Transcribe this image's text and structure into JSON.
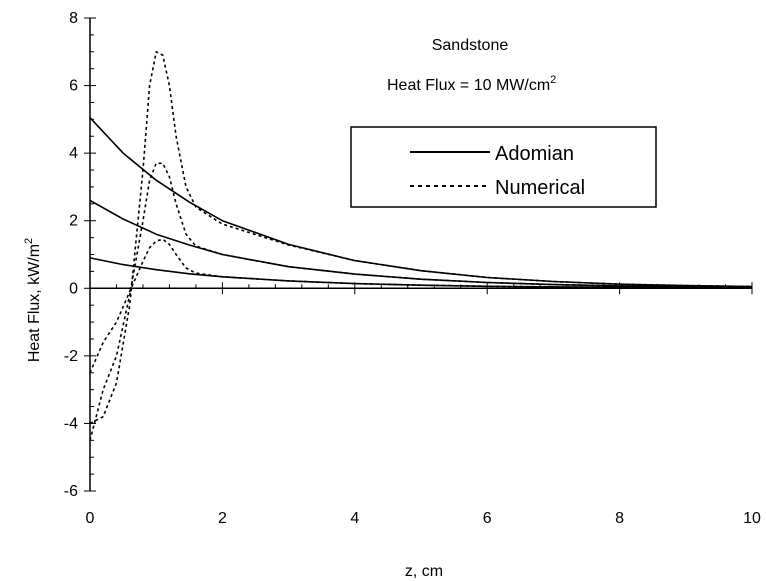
{
  "chart_data": {
    "type": "line",
    "annotations": {
      "material": "Sandstone",
      "heat_flux_prefix": "Heat Flux = 10 MW/cm",
      "heat_flux_sup": "2"
    },
    "xlabel": "z, cm",
    "ylabel_main": "Heat Flux, kW/m",
    "ylabel_sup": "2",
    "xlim": [
      0,
      10
    ],
    "ylim": [
      -6,
      8
    ],
    "x_ticks": [
      "0",
      "2",
      "4",
      "6",
      "8",
      "10"
    ],
    "y_ticks": [
      "-6",
      "-4",
      "-2",
      "0",
      "2",
      "4",
      "6",
      "8"
    ],
    "legend": {
      "placement": "upper-center-right",
      "entries": [
        {
          "label": "Adomian",
          "style": "solid"
        },
        {
          "label": "Numerical",
          "style": "dashed"
        }
      ]
    },
    "series": [
      {
        "style": "solid",
        "x": [
          0,
          0.5,
          1,
          1.5,
          2,
          3,
          4,
          5,
          6,
          7,
          8,
          9,
          10
        ],
        "y": [
          5.05,
          4.0,
          3.2,
          2.55,
          2.0,
          1.3,
          0.82,
          0.52,
          0.32,
          0.2,
          0.12,
          0.08,
          0.05
        ]
      },
      {
        "style": "solid",
        "x": [
          0,
          0.5,
          1,
          1.5,
          2,
          3,
          4,
          5,
          6,
          7,
          8,
          9,
          10
        ],
        "y": [
          2.6,
          2.05,
          1.6,
          1.28,
          1.0,
          0.64,
          0.42,
          0.27,
          0.17,
          0.11,
          0.07,
          0.05,
          0.03
        ]
      },
      {
        "style": "solid",
        "x": [
          0,
          0.5,
          1,
          1.5,
          2,
          3,
          4,
          5,
          6,
          7,
          8,
          9,
          10
        ],
        "y": [
          0.9,
          0.7,
          0.55,
          0.43,
          0.34,
          0.22,
          0.14,
          0.09,
          0.06,
          0.04,
          0.03,
          0.02,
          0.01
        ]
      },
      {
        "style": "dashed",
        "x": [
          0,
          0.2,
          0.4,
          0.6,
          0.8,
          0.9,
          1.0,
          1.1,
          1.2,
          1.3,
          1.45,
          1.6,
          2,
          3,
          4,
          5,
          6,
          7,
          8,
          9,
          10
        ],
        "y": [
          -4.0,
          -3.8,
          -2.8,
          -0.5,
          3.5,
          6.0,
          7.0,
          6.9,
          6.0,
          4.5,
          3.0,
          2.4,
          1.9,
          1.28,
          0.82,
          0.52,
          0.32,
          0.2,
          0.12,
          0.08,
          0.05
        ]
      },
      {
        "style": "dashed",
        "x": [
          0,
          0.2,
          0.4,
          0.6,
          0.8,
          0.9,
          1.0,
          1.1,
          1.2,
          1.3,
          1.45,
          1.6,
          2,
          3,
          4,
          5,
          6,
          7,
          8,
          9,
          10
        ],
        "y": [
          -4.5,
          -3.0,
          -2.0,
          -0.2,
          2.0,
          3.2,
          3.7,
          3.7,
          3.3,
          2.5,
          1.6,
          1.25,
          1.0,
          0.64,
          0.42,
          0.27,
          0.17,
          0.11,
          0.07,
          0.05,
          0.03
        ]
      },
      {
        "style": "dashed",
        "x": [
          0,
          0.2,
          0.4,
          0.6,
          0.8,
          0.9,
          1.0,
          1.1,
          1.2,
          1.3,
          1.45,
          1.6,
          2,
          3,
          4,
          5,
          6,
          7,
          8,
          9,
          10
        ],
        "y": [
          -2.5,
          -1.6,
          -1.0,
          -0.1,
          0.8,
          1.2,
          1.4,
          1.45,
          1.3,
          1.0,
          0.6,
          0.45,
          0.34,
          0.22,
          0.14,
          0.09,
          0.06,
          0.04,
          0.03,
          0.02,
          0.01
        ]
      }
    ]
  }
}
